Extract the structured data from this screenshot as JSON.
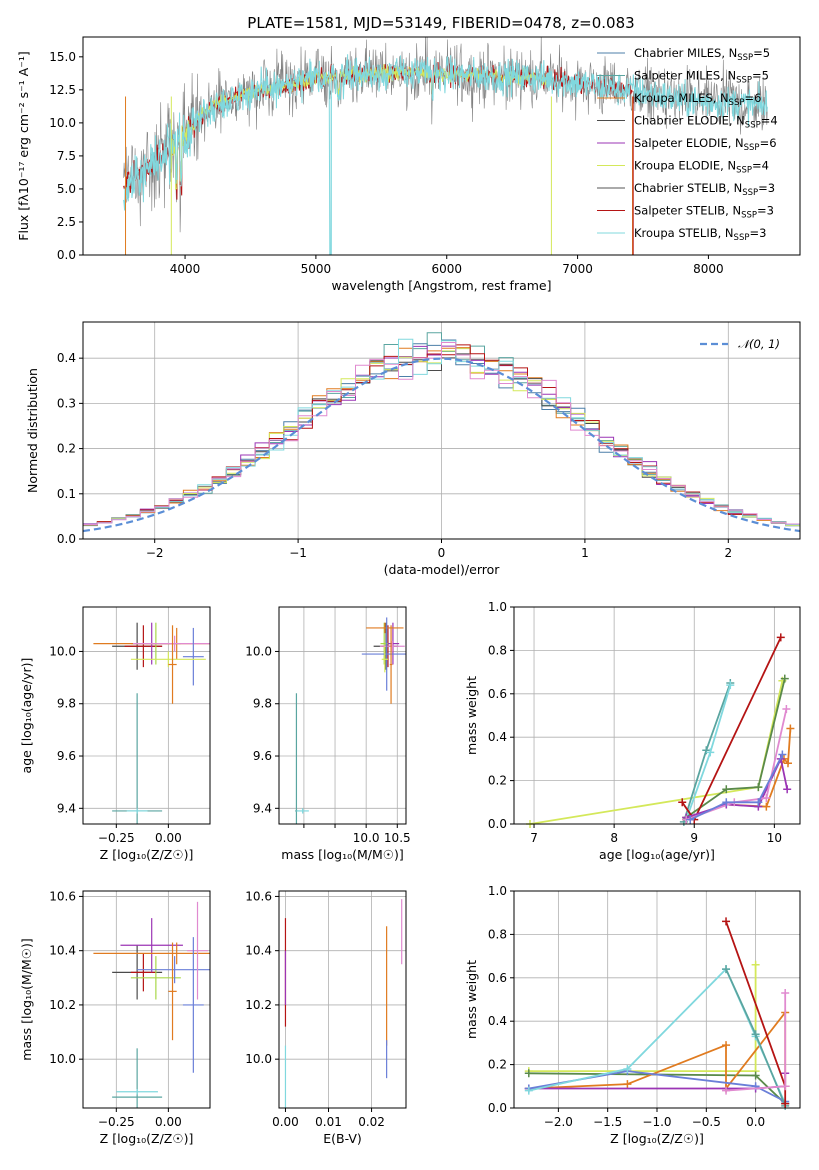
{
  "figure_title": "PLATE=1581, MJD=53149, FIBERID=0478, z=0.083",
  "colors": {
    "chabrier_miles": "#4c7fa8",
    "salpeter_miles": "#5aa5a0",
    "kroupa_miles": "#e07b20",
    "chabrier_elodie": "#4b4b4b",
    "salpeter_elodie": "#9b35b5",
    "kroupa_elodie": "#d4e85a",
    "chabrier_stelib": "#555555",
    "salpeter_stelib": "#b51414",
    "kroupa_stelib": "#80d8de",
    "normal": "#5b8ed6",
    "blue": "#6a7fd8",
    "green": "#5a8a4a",
    "pink": "#e08ad0",
    "lime": "#a8d848"
  },
  "chart_data": [
    {
      "id": "spectrum",
      "type": "line",
      "title": "PLATE=1581, MJD=53149, FIBERID=0478, z=0.083",
      "xlabel": "wavelength [Angstrom, rest frame]",
      "ylabel": "Flux [fλ10⁻¹⁷ erg cm⁻² s⁻¹ A⁻¹]",
      "xlim": [
        3220,
        8700
      ],
      "ylim": [
        0,
        16.5
      ],
      "xticks": [
        4000,
        5000,
        6000,
        7000,
        8000
      ],
      "yticks": [
        0.0,
        2.5,
        5.0,
        7.5,
        10.0,
        12.5,
        15.0
      ],
      "legend": "top-right",
      "legend_entries": [
        {
          "label": "Chabrier MILES, N",
          "sub": "SSP",
          "suffix": "=5",
          "color": "#4c7fa8"
        },
        {
          "label": "Salpeter MILES, N",
          "sub": "SSP",
          "suffix": "=5",
          "color": "#5aa5a0"
        },
        {
          "label": "Kroupa MILES, N",
          "sub": "SSP",
          "suffix": "=6",
          "color": "#e07b20"
        },
        {
          "label": "Chabrier ELODIE, N",
          "sub": "SSP",
          "suffix": "=4",
          "color": "#4b4b4b"
        },
        {
          "label": "Salpeter ELODIE, N",
          "sub": "SSP",
          "suffix": "=6",
          "color": "#9b35b5"
        },
        {
          "label": "Kroupa ELODIE, N",
          "sub": "SSP",
          "suffix": "=4",
          "color": "#d4e85a"
        },
        {
          "label": "Chabrier STELIB, N",
          "sub": "SSP",
          "suffix": "=3",
          "color": "#555555"
        },
        {
          "label": "Salpeter STELIB, N",
          "sub": "SSP",
          "suffix": "=3",
          "color": "#b51414"
        },
        {
          "label": "Kroupa STELIB, N",
          "sub": "SSP",
          "suffix": "=3",
          "color": "#80d8de"
        }
      ],
      "continuum": {
        "x": [
          3530,
          3600,
          3700,
          3800,
          3900,
          4000,
          4100,
          4200,
          4300,
          4400,
          4500,
          4600,
          4700,
          4800,
          4900,
          5000,
          5200,
          5400,
          5600,
          5800,
          6000,
          6200,
          6400,
          6600,
          6800,
          7000,
          7200,
          7400,
          7600,
          7800,
          8000,
          8200,
          8400,
          8500
        ],
        "y": [
          5.2,
          5.7,
          6.6,
          7.3,
          8.0,
          9.0,
          10.3,
          11.2,
          11.6,
          12.0,
          12.3,
          12.5,
          12.7,
          12.9,
          13.1,
          13.4,
          13.6,
          13.7,
          13.8,
          13.8,
          13.7,
          13.6,
          13.5,
          13.5,
          13.3,
          13.0,
          12.7,
          12.5,
          12.1,
          11.7,
          11.6,
          11.5,
          11.3,
          11.2
        ]
      }
    },
    {
      "id": "residuals",
      "type": "histogram",
      "xlabel": "(data-model)/error",
      "ylabel": "Normed distribution",
      "xlim": [
        -2.5,
        2.5
      ],
      "ylim": [
        0,
        0.48
      ],
      "xticks": [
        -2,
        -1,
        0,
        1,
        2
      ],
      "yticks": [
        0.0,
        0.1,
        0.2,
        0.3,
        0.4
      ],
      "grid": true,
      "legend": "top-right",
      "legend_entries": [
        {
          "label": "𝒩(0, 1)",
          "color": "#5b8ed6"
        }
      ],
      "bin_width": 0.1,
      "series_colors": [
        "#4c7fa8",
        "#5aa5a0",
        "#e07b20",
        "#4b4b4b",
        "#9b35b5",
        "#d4e85a",
        "#b51414",
        "#80d8de",
        "#e08ad0"
      ]
    },
    {
      "id": "age_vs_Z",
      "type": "errorbar",
      "xlabel": "Z [log₁₀(Z/Z☉)]",
      "ylabel": "age  [log₁₀(age/yr)]",
      "xlim": [
        -0.41,
        0.2
      ],
      "ylim": [
        9.34,
        10.17
      ],
      "xticks": [
        -0.25,
        0.0
      ],
      "yticks": [
        9.4,
        9.6,
        9.8,
        10.0
      ],
      "grid": true,
      "points": [
        {
          "x": -0.15,
          "y": 10.02,
          "xerr": 0.12,
          "yerr": 0.09,
          "color": "#4b4b4b"
        },
        {
          "x": -0.12,
          "y": 10.02,
          "xerr": 0.09,
          "yerr": 0.08,
          "color": "#b51414"
        },
        {
          "x": -0.08,
          "y": 10.03,
          "xerr": 0.09,
          "yerr": 0.08,
          "color": "#9b35b5"
        },
        {
          "x": -0.06,
          "y": 10.03,
          "xerr": 0.12,
          "yerr": 0.08,
          "color": "#a8d848"
        },
        {
          "x": 0.04,
          "y": 10.03,
          "xerr": 0.4,
          "yerr": 0.06,
          "color": "#e07b20"
        },
        {
          "x": 0.03,
          "y": 10.03,
          "xerr": 0.2,
          "yerr": 0.03,
          "color": "#e08ad0"
        },
        {
          "x": 0.12,
          "y": 9.98,
          "xerr": 0.05,
          "yerr": 0.11,
          "color": "#6a7fd8"
        },
        {
          "x": 0.0,
          "y": 9.97,
          "xerr": 0.18,
          "yerr": 0.03,
          "color": "#d4e85a"
        },
        {
          "x": 0.02,
          "y": 9.95,
          "xerr": 0.02,
          "yerr": 0.15,
          "color": "#e07b20"
        },
        {
          "x": -0.15,
          "y": 9.39,
          "xerr": 0.12,
          "yerr": 0.45,
          "color": "#5aa5a0"
        },
        {
          "x": -0.15,
          "y": 9.39,
          "xerr": 0.05,
          "yerr": 0.01,
          "color": "#80d8de"
        }
      ]
    },
    {
      "id": "age_vs_mass",
      "type": "errorbar",
      "xlabel": "mass [log₁₀(M/M☉)]",
      "ylabel": "",
      "xlim": [
        8.6,
        10.64
      ],
      "ylim": [
        9.34,
        10.17
      ],
      "xticks": [
        9.0,
        9.5,
        10.0,
        10.5
      ],
      "xtick_labels": [
        "",
        "",
        "10.0",
        "10.5"
      ],
      "yticks": [
        9.4,
        9.6,
        9.8,
        10.0
      ],
      "grid": true,
      "points": [
        {
          "x": 10.32,
          "y": 10.02,
          "xerr": 0.2,
          "yerr": 0.09,
          "color": "#4b4b4b"
        },
        {
          "x": 10.35,
          "y": 10.02,
          "xerr": 0.1,
          "yerr": 0.08,
          "color": "#b51414"
        },
        {
          "x": 10.43,
          "y": 10.03,
          "xerr": 0.1,
          "yerr": 0.08,
          "color": "#9b35b5"
        },
        {
          "x": 10.29,
          "y": 10.03,
          "xerr": 0.06,
          "yerr": 0.08,
          "color": "#a8d848"
        },
        {
          "x": 10.3,
          "y": 10.09,
          "xerr": 0.3,
          "yerr": 0.02,
          "color": "#e07b20"
        },
        {
          "x": 10.42,
          "y": 10.02,
          "xerr": 0.2,
          "yerr": 0.02,
          "color": "#e08ad0"
        },
        {
          "x": 10.33,
          "y": 9.99,
          "xerr": 0.4,
          "yerr": 0.14,
          "color": "#6a7fd8"
        },
        {
          "x": 10.3,
          "y": 9.97,
          "xerr": 0.05,
          "yerr": 0.05,
          "color": "#d4e85a"
        },
        {
          "x": 10.4,
          "y": 9.95,
          "xerr": 0.02,
          "yerr": 0.15,
          "color": "#e07b20"
        },
        {
          "x": 8.88,
          "y": 9.39,
          "xerr": 0.02,
          "yerr": 0.45,
          "color": "#5aa5a0"
        },
        {
          "x": 8.98,
          "y": 9.39,
          "xerr": 0.1,
          "yerr": 0.01,
          "color": "#80d8de"
        }
      ]
    },
    {
      "id": "massweight_vs_age",
      "type": "line",
      "xlabel": "age  [log₁₀(age/yr)]",
      "ylabel": "mass weight",
      "xlim": [
        6.75,
        10.32
      ],
      "ylim": [
        0,
        1.0
      ],
      "xticks": [
        7,
        8,
        9,
        10
      ],
      "yticks": [
        0.0,
        0.2,
        0.4,
        0.6,
        0.8,
        1.0
      ],
      "grid": true,
      "series": [
        {
          "color": "#d4e85a",
          "x": [
            6.95,
            9.8,
            10.1
          ],
          "y": [
            0.0,
            0.17,
            0.66
          ]
        },
        {
          "color": "#5aa5a0",
          "x": [
            8.87,
            9.15,
            9.45
          ],
          "y": [
            0.01,
            0.34,
            0.65
          ]
        },
        {
          "color": "#80d8de",
          "x": [
            8.9,
            9.2,
            9.45
          ],
          "y": [
            0.02,
            0.33,
            0.64
          ]
        },
        {
          "color": "#5a8a4a",
          "x": [
            8.9,
            9.4,
            9.8,
            10.13
          ],
          "y": [
            0.03,
            0.16,
            0.17,
            0.67
          ]
        },
        {
          "color": "#b51414",
          "x": [
            8.85,
            9.0,
            10.08
          ],
          "y": [
            0.1,
            0.02,
            0.86
          ]
        },
        {
          "color": "#e07b20",
          "x": [
            8.9,
            9.4,
            9.9,
            10.12,
            10.17,
            10.2
          ],
          "y": [
            0.02,
            0.09,
            0.08,
            0.3,
            0.28,
            0.44
          ]
        },
        {
          "color": "#9b35b5",
          "x": [
            8.9,
            9.4,
            9.8,
            10.08,
            10.16
          ],
          "y": [
            0.03,
            0.09,
            0.08,
            0.3,
            0.16
          ]
        },
        {
          "color": "#e08ad0",
          "x": [
            8.9,
            9.5,
            9.9,
            10.15
          ],
          "y": [
            0.02,
            0.1,
            0.12,
            0.53
          ]
        },
        {
          "color": "#6a7fd8",
          "x": [
            8.95,
            9.4,
            9.8,
            10.1
          ],
          "y": [
            0.02,
            0.1,
            0.1,
            0.32
          ]
        }
      ]
    },
    {
      "id": "mass_vs_Z",
      "type": "errorbar",
      "xlabel": "Z [log₁₀(Z/Z☉)]",
      "ylabel": "mass [log₁₀(M/M☉)]",
      "xlim": [
        -0.41,
        0.2
      ],
      "ylim": [
        9.82,
        10.62
      ],
      "xticks": [
        -0.25,
        0.0
      ],
      "yticks": [
        10.0,
        10.2,
        10.4,
        10.6
      ],
      "grid": true,
      "points": [
        {
          "x": -0.15,
          "y": 10.32,
          "xerr": 0.12,
          "yerr": 0.1,
          "color": "#4b4b4b"
        },
        {
          "x": -0.12,
          "y": 10.32,
          "xerr": 0.06,
          "yerr": 0.07,
          "color": "#b51414"
        },
        {
          "x": -0.08,
          "y": 10.42,
          "xerr": 0.15,
          "yerr": 0.1,
          "color": "#9b35b5"
        },
        {
          "x": -0.06,
          "y": 10.3,
          "xerr": 0.12,
          "yerr": 0.08,
          "color": "#a8d848"
        },
        {
          "x": 0.04,
          "y": 10.39,
          "xerr": 0.4,
          "yerr": 0.04,
          "color": "#e07b20"
        },
        {
          "x": 0.03,
          "y": 10.33,
          "xerr": 0.18,
          "yerr": 0.05,
          "color": "#6a7fd8"
        },
        {
          "x": 0.14,
          "y": 10.4,
          "xerr": 0.05,
          "yerr": 0.18,
          "color": "#e08ad0"
        },
        {
          "x": 0.02,
          "y": 10.25,
          "xerr": 0.02,
          "yerr": 0.18,
          "color": "#e07b20"
        },
        {
          "x": 0.12,
          "y": 10.2,
          "xerr": 0.05,
          "yerr": 0.25,
          "color": "#6a7fd8"
        },
        {
          "x": -0.15,
          "y": 9.86,
          "xerr": 0.12,
          "yerr": 0.18,
          "color": "#5aa5a0"
        },
        {
          "x": -0.15,
          "y": 9.88,
          "xerr": 0.1,
          "yerr": 0.01,
          "color": "#80d8de"
        }
      ]
    },
    {
      "id": "mass_vs_ebv",
      "type": "errorbar",
      "xlabel": "E(B-V)",
      "ylabel": "",
      "xlim": [
        -0.0015,
        0.028
      ],
      "ylim": [
        9.82,
        10.62
      ],
      "xticks": [
        0.0,
        0.01,
        0.02
      ],
      "xtick_labels": [
        "0.00",
        "0.01",
        "0.02"
      ],
      "yticks": [
        10.0,
        10.2,
        10.4,
        10.6
      ],
      "grid": true,
      "points": [
        {
          "x": 0.0,
          "y": 10.32,
          "xerr": 0.0,
          "yerr": 0.2,
          "color": "#b51414"
        },
        {
          "x": 0.0,
          "y": 10.3,
          "xerr": 0.0,
          "yerr": 0.1,
          "color": "#9b35b5"
        },
        {
          "x": 0.0,
          "y": 9.93,
          "xerr": 0.0,
          "yerr": 0.12,
          "color": "#80d8de"
        },
        {
          "x": 0.0235,
          "y": 10.27,
          "xerr": 0.0,
          "yerr": 0.22,
          "color": "#e07b20"
        },
        {
          "x": 0.0235,
          "y": 10.0,
          "xerr": 0.0,
          "yerr": 0.07,
          "color": "#6a7fd8"
        },
        {
          "x": 0.027,
          "y": 10.47,
          "xerr": 0.0,
          "yerr": 0.12,
          "color": "#e08ad0"
        }
      ]
    },
    {
      "id": "massweight_vs_Z",
      "type": "line",
      "xlabel": "Z [log₁₀(Z/Z☉)]",
      "ylabel": "mass weight",
      "xlim": [
        -2.45,
        0.45
      ],
      "ylim": [
        0,
        1.0
      ],
      "xticks": [
        -2.0,
        -1.5,
        -1.0,
        -0.5,
        0.0
      ],
      "yticks": [
        0.0,
        0.2,
        0.4,
        0.6,
        0.8,
        1.0
      ],
      "grid": true,
      "series": [
        {
          "color": "#d4e85a",
          "x": [
            -2.3,
            0.0,
            0.0
          ],
          "y": [
            0.17,
            0.17,
            0.66
          ]
        },
        {
          "color": "#5a8a4a",
          "x": [
            -2.3,
            0.0,
            0.3
          ],
          "y": [
            0.16,
            0.15,
            0.02
          ]
        },
        {
          "color": "#e07b20",
          "x": [
            -2.3,
            -1.3,
            -0.3,
            -0.3,
            0.3,
            0.3
          ],
          "y": [
            0.09,
            0.11,
            0.29,
            0.09,
            0.44,
            0.1
          ]
        },
        {
          "color": "#9b35b5",
          "x": [
            -2.3,
            0.0,
            0.3,
            0.3
          ],
          "y": [
            0.09,
            0.09,
            0.1,
            0.16
          ]
        },
        {
          "color": "#6a7fd8",
          "x": [
            -2.3,
            -1.3,
            0.0,
            0.3
          ],
          "y": [
            0.09,
            0.17,
            0.1,
            0.03
          ]
        },
        {
          "color": "#80d8de",
          "x": [
            -2.3,
            -1.3,
            -0.3,
            0.0,
            0.3
          ],
          "y": [
            0.08,
            0.18,
            0.64,
            0.33,
            0.02
          ]
        },
        {
          "color": "#5aa5a0",
          "x": [
            -0.3,
            0.0,
            0.3
          ],
          "y": [
            0.64,
            0.34,
            0.01
          ]
        },
        {
          "color": "#b51414",
          "x": [
            -0.3,
            0.3,
            0.3
          ],
          "y": [
            0.86,
            0.1,
            0.02
          ]
        },
        {
          "color": "#e08ad0",
          "x": [
            -0.3,
            0.3,
            0.3
          ],
          "y": [
            0.08,
            0.1,
            0.53
          ]
        }
      ]
    }
  ]
}
